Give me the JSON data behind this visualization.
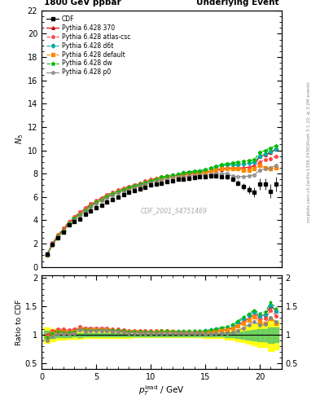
{
  "title_left": "1800 GeV ppbar",
  "title_right": "Underlying Event",
  "ylabel_main": "$N_5$",
  "ylabel_ratio": "Ratio to CDF",
  "xlabel": "$p_T^{\\rm lead}$ / GeV",
  "watermark": "CDF_2001_S4751469",
  "right_label": "Rivet 3.1.10, ≥ 3.2M events",
  "right_label2": "mcplots.cern.ch [arXiv:1306.3436]",
  "xlim": [
    0,
    22
  ],
  "ylim_main": [
    0,
    22
  ],
  "ylim_ratio": [
    0.4,
    2.05
  ],
  "yticks_main": [
    0,
    2,
    4,
    6,
    8,
    10,
    12,
    14,
    16,
    18,
    20,
    22
  ],
  "yticks_ratio": [
    0.5,
    1.0,
    1.5,
    2.0
  ],
  "xticks": [
    0,
    5,
    10,
    15,
    20
  ],
  "cdf_x": [
    0.5,
    1.0,
    1.5,
    2.0,
    2.5,
    3.0,
    3.5,
    4.0,
    4.5,
    5.0,
    5.5,
    6.0,
    6.5,
    7.0,
    7.5,
    8.0,
    8.5,
    9.0,
    9.5,
    10.0,
    10.5,
    11.0,
    11.5,
    12.0,
    12.5,
    13.0,
    13.5,
    14.0,
    14.5,
    15.0,
    15.5,
    16.0,
    16.5,
    17.0,
    17.5,
    18.0,
    18.5,
    19.0,
    19.5,
    20.0,
    20.5,
    21.0,
    21.5
  ],
  "cdf_y": [
    1.1,
    1.9,
    2.5,
    3.0,
    3.6,
    3.9,
    4.1,
    4.5,
    4.8,
    5.1,
    5.3,
    5.55,
    5.8,
    6.0,
    6.2,
    6.4,
    6.55,
    6.7,
    6.85,
    7.0,
    7.1,
    7.2,
    7.3,
    7.4,
    7.5,
    7.55,
    7.6,
    7.65,
    7.7,
    7.75,
    7.8,
    7.8,
    7.75,
    7.7,
    7.5,
    7.2,
    6.9,
    6.6,
    6.4,
    7.1,
    7.1,
    6.5,
    7.1
  ],
  "cdf_yerr": [
    0.05,
    0.07,
    0.07,
    0.08,
    0.08,
    0.08,
    0.09,
    0.09,
    0.09,
    0.09,
    0.1,
    0.1,
    0.1,
    0.1,
    0.1,
    0.1,
    0.1,
    0.1,
    0.1,
    0.1,
    0.1,
    0.1,
    0.1,
    0.1,
    0.1,
    0.1,
    0.1,
    0.1,
    0.1,
    0.15,
    0.15,
    0.15,
    0.15,
    0.2,
    0.2,
    0.25,
    0.3,
    0.35,
    0.4,
    0.5,
    0.5,
    0.6,
    0.6
  ],
  "p370_x": [
    0.5,
    1.0,
    1.5,
    2.0,
    2.5,
    3.0,
    3.5,
    4.0,
    4.5,
    5.0,
    5.5,
    6.0,
    6.5,
    7.0,
    7.5,
    8.0,
    8.5,
    9.0,
    9.5,
    10.0,
    10.5,
    11.0,
    11.5,
    12.0,
    12.5,
    13.0,
    13.5,
    14.0,
    14.5,
    15.0,
    15.5,
    16.0,
    16.5,
    17.0,
    17.5,
    18.0,
    18.5,
    19.0,
    19.5,
    20.0,
    20.5,
    21.0,
    21.5
  ],
  "p370_y": [
    1.1,
    2.0,
    2.7,
    3.2,
    3.8,
    4.2,
    4.6,
    5.0,
    5.3,
    5.6,
    5.85,
    6.1,
    6.3,
    6.5,
    6.65,
    6.8,
    6.95,
    7.1,
    7.25,
    7.4,
    7.5,
    7.6,
    7.7,
    7.8,
    7.85,
    7.9,
    7.95,
    8.0,
    8.05,
    8.1,
    8.2,
    8.3,
    8.35,
    8.4,
    8.4,
    8.45,
    8.5,
    8.55,
    8.7,
    9.5,
    9.6,
    9.8,
    10.1
  ],
  "p370_yerr": [
    0.02,
    0.03,
    0.03,
    0.03,
    0.03,
    0.03,
    0.03,
    0.03,
    0.03,
    0.03,
    0.03,
    0.03,
    0.03,
    0.03,
    0.03,
    0.03,
    0.03,
    0.03,
    0.03,
    0.03,
    0.03,
    0.03,
    0.03,
    0.03,
    0.03,
    0.03,
    0.03,
    0.03,
    0.03,
    0.03,
    0.03,
    0.04,
    0.04,
    0.04,
    0.05,
    0.05,
    0.06,
    0.08,
    0.1,
    0.12,
    0.12,
    0.15,
    0.15
  ],
  "patlas_x": [
    0.5,
    1.0,
    1.5,
    2.0,
    2.5,
    3.0,
    3.5,
    4.0,
    4.5,
    5.0,
    5.5,
    6.0,
    6.5,
    7.0,
    7.5,
    8.0,
    8.5,
    9.0,
    9.5,
    10.0,
    10.5,
    11.0,
    11.5,
    12.0,
    12.5,
    13.0,
    13.5,
    14.0,
    14.5,
    15.0,
    15.5,
    16.0,
    16.5,
    17.0,
    17.5,
    18.0,
    18.5,
    19.0,
    19.5,
    20.0,
    20.5,
    21.0,
    21.5
  ],
  "patlas_y": [
    1.1,
    2.05,
    2.75,
    3.3,
    3.9,
    4.3,
    4.7,
    5.05,
    5.4,
    5.7,
    5.95,
    6.2,
    6.4,
    6.6,
    6.75,
    6.9,
    7.05,
    7.2,
    7.35,
    7.5,
    7.6,
    7.7,
    7.8,
    7.9,
    7.95,
    8.0,
    8.05,
    8.1,
    8.15,
    8.2,
    8.3,
    8.4,
    8.45,
    8.5,
    8.5,
    8.5,
    8.5,
    8.5,
    8.6,
    9.0,
    9.2,
    9.3,
    9.5
  ],
  "patlas_yerr": [
    0.02,
    0.03,
    0.03,
    0.03,
    0.03,
    0.03,
    0.03,
    0.03,
    0.03,
    0.03,
    0.03,
    0.03,
    0.03,
    0.03,
    0.03,
    0.03,
    0.03,
    0.03,
    0.03,
    0.03,
    0.03,
    0.03,
    0.03,
    0.03,
    0.03,
    0.03,
    0.03,
    0.03,
    0.03,
    0.03,
    0.03,
    0.04,
    0.04,
    0.04,
    0.05,
    0.05,
    0.06,
    0.08,
    0.1,
    0.12,
    0.12,
    0.15,
    0.15
  ],
  "pd6t_x": [
    0.5,
    1.0,
    1.5,
    2.0,
    2.5,
    3.0,
    3.5,
    4.0,
    4.5,
    5.0,
    5.5,
    6.0,
    6.5,
    7.0,
    7.5,
    8.0,
    8.5,
    9.0,
    9.5,
    10.0,
    10.5,
    11.0,
    11.5,
    12.0,
    12.5,
    13.0,
    13.5,
    14.0,
    14.5,
    15.0,
    15.5,
    16.0,
    16.5,
    17.0,
    17.5,
    18.0,
    18.5,
    19.0,
    19.5,
    20.0,
    20.5,
    21.0,
    21.5
  ],
  "pd6t_y": [
    1.05,
    1.95,
    2.65,
    3.15,
    3.75,
    4.15,
    4.55,
    4.9,
    5.25,
    5.55,
    5.8,
    6.05,
    6.25,
    6.45,
    6.6,
    6.75,
    6.9,
    7.05,
    7.2,
    7.35,
    7.5,
    7.65,
    7.75,
    7.85,
    7.95,
    8.05,
    8.1,
    8.15,
    8.2,
    8.3,
    8.45,
    8.6,
    8.7,
    8.75,
    8.75,
    8.8,
    8.85,
    8.9,
    9.0,
    9.5,
    9.7,
    9.9,
    10.1
  ],
  "pd6t_yerr": [
    0.02,
    0.03,
    0.03,
    0.03,
    0.03,
    0.03,
    0.03,
    0.03,
    0.03,
    0.03,
    0.03,
    0.03,
    0.03,
    0.03,
    0.03,
    0.03,
    0.03,
    0.03,
    0.03,
    0.03,
    0.03,
    0.03,
    0.03,
    0.03,
    0.03,
    0.03,
    0.03,
    0.03,
    0.03,
    0.03,
    0.03,
    0.04,
    0.04,
    0.04,
    0.05,
    0.05,
    0.06,
    0.08,
    0.1,
    0.12,
    0.12,
    0.15,
    0.15
  ],
  "pdefault_x": [
    0.5,
    1.0,
    1.5,
    2.0,
    2.5,
    3.0,
    3.5,
    4.0,
    4.5,
    5.0,
    5.5,
    6.0,
    6.5,
    7.0,
    7.5,
    8.0,
    8.5,
    9.0,
    9.5,
    10.0,
    10.5,
    11.0,
    11.5,
    12.0,
    12.5,
    13.0,
    13.5,
    14.0,
    14.5,
    15.0,
    15.5,
    16.0,
    16.5,
    17.0,
    17.5,
    18.0,
    18.5,
    19.0,
    19.5,
    20.0,
    20.5,
    21.0,
    21.5
  ],
  "pdefault_y": [
    1.05,
    1.95,
    2.65,
    3.15,
    3.75,
    4.15,
    4.55,
    4.9,
    5.25,
    5.55,
    5.8,
    6.05,
    6.25,
    6.45,
    6.6,
    6.75,
    6.9,
    7.05,
    7.2,
    7.35,
    7.5,
    7.6,
    7.7,
    7.8,
    7.9,
    7.95,
    8.0,
    8.05,
    8.1,
    8.15,
    8.25,
    8.35,
    8.4,
    8.45,
    8.4,
    8.4,
    8.3,
    8.3,
    8.4,
    8.7,
    8.5,
    8.4,
    8.5
  ],
  "pdefault_yerr": [
    0.02,
    0.03,
    0.03,
    0.03,
    0.03,
    0.03,
    0.03,
    0.03,
    0.03,
    0.03,
    0.03,
    0.03,
    0.03,
    0.03,
    0.03,
    0.03,
    0.03,
    0.03,
    0.03,
    0.03,
    0.03,
    0.03,
    0.03,
    0.03,
    0.03,
    0.03,
    0.03,
    0.03,
    0.03,
    0.03,
    0.03,
    0.04,
    0.04,
    0.04,
    0.05,
    0.05,
    0.06,
    0.08,
    0.1,
    0.12,
    0.12,
    0.15,
    0.15
  ],
  "pdw_x": [
    0.5,
    1.0,
    1.5,
    2.0,
    2.5,
    3.0,
    3.5,
    4.0,
    4.5,
    5.0,
    5.5,
    6.0,
    6.5,
    7.0,
    7.5,
    8.0,
    8.5,
    9.0,
    9.5,
    10.0,
    10.5,
    11.0,
    11.5,
    12.0,
    12.5,
    13.0,
    13.5,
    14.0,
    14.5,
    15.0,
    15.5,
    16.0,
    16.5,
    17.0,
    17.5,
    18.0,
    18.5,
    19.0,
    19.5,
    20.0,
    20.5,
    21.0,
    21.5
  ],
  "pdw_y": [
    1.05,
    1.95,
    2.65,
    3.15,
    3.75,
    4.15,
    4.55,
    4.9,
    5.25,
    5.55,
    5.8,
    6.05,
    6.3,
    6.5,
    6.65,
    6.8,
    6.95,
    7.1,
    7.25,
    7.4,
    7.55,
    7.7,
    7.8,
    7.9,
    7.95,
    8.05,
    8.15,
    8.2,
    8.25,
    8.35,
    8.5,
    8.65,
    8.75,
    8.85,
    8.9,
    9.0,
    9.05,
    9.1,
    9.2,
    9.8,
    10.0,
    10.2,
    10.4
  ],
  "pdw_yerr": [
    0.02,
    0.03,
    0.03,
    0.03,
    0.03,
    0.03,
    0.03,
    0.03,
    0.03,
    0.03,
    0.03,
    0.03,
    0.03,
    0.03,
    0.03,
    0.03,
    0.03,
    0.03,
    0.03,
    0.03,
    0.03,
    0.03,
    0.03,
    0.03,
    0.03,
    0.03,
    0.03,
    0.03,
    0.03,
    0.03,
    0.03,
    0.04,
    0.04,
    0.04,
    0.05,
    0.05,
    0.06,
    0.08,
    0.1,
    0.12,
    0.12,
    0.15,
    0.15
  ],
  "pp0_x": [
    0.5,
    1.0,
    1.5,
    2.0,
    2.5,
    3.0,
    3.5,
    4.0,
    4.5,
    5.0,
    5.5,
    6.0,
    6.5,
    7.0,
    7.5,
    8.0,
    8.5,
    9.0,
    9.5,
    10.0,
    10.5,
    11.0,
    11.5,
    12.0,
    12.5,
    13.0,
    13.5,
    14.0,
    14.5,
    15.0,
    15.5,
    16.0,
    16.5,
    17.0,
    17.5,
    18.0,
    18.5,
    19.0,
    19.5,
    20.0,
    20.5,
    21.0,
    21.5
  ],
  "pp0_y": [
    1.0,
    1.85,
    2.55,
    3.05,
    3.65,
    4.05,
    4.45,
    4.8,
    5.15,
    5.45,
    5.7,
    5.95,
    6.15,
    6.35,
    6.5,
    6.65,
    6.8,
    6.95,
    7.1,
    7.25,
    7.35,
    7.45,
    7.55,
    7.65,
    7.7,
    7.75,
    7.8,
    7.85,
    7.9,
    7.9,
    7.95,
    8.0,
    8.0,
    8.0,
    7.8,
    7.75,
    7.75,
    7.8,
    7.9,
    8.3,
    8.4,
    8.5,
    8.7
  ],
  "pp0_yerr": [
    0.02,
    0.03,
    0.03,
    0.03,
    0.03,
    0.03,
    0.03,
    0.03,
    0.03,
    0.03,
    0.03,
    0.03,
    0.03,
    0.03,
    0.03,
    0.03,
    0.03,
    0.03,
    0.03,
    0.03,
    0.03,
    0.03,
    0.03,
    0.03,
    0.03,
    0.03,
    0.03,
    0.03,
    0.03,
    0.03,
    0.03,
    0.04,
    0.04,
    0.04,
    0.05,
    0.05,
    0.06,
    0.08,
    0.1,
    0.12,
    0.12,
    0.15,
    0.15
  ],
  "colors": {
    "p370": "#cc0000",
    "patlas": "#ff4444",
    "pd6t": "#00aaaa",
    "pdefault": "#ff8800",
    "pdw": "#00bb00",
    "pp0": "#888888"
  }
}
